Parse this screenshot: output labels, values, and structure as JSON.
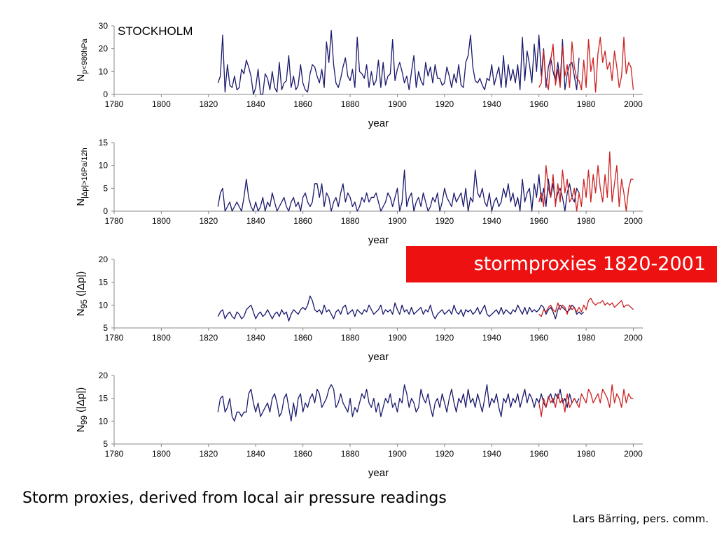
{
  "banner": "stormproxies 1820-2001",
  "caption": "Storm proxies, derived from local air pressure readings",
  "credit": "Lars Bärring, pers. comm.",
  "colors": {
    "series_a": "#1a1a6e",
    "series_b": "#cc2222",
    "banner_bg": "#ee1111"
  },
  "chart_data": [
    {
      "type": "line",
      "station_label": "STOCKHOLM",
      "xlabel": "year",
      "ylabel": {
        "base": "N",
        "sub": "p<980hPa",
        "suffix": ""
      },
      "xlim": [
        1780,
        2004
      ],
      "ylim": [
        0,
        30
      ],
      "xticks": [
        1780,
        1800,
        1820,
        1840,
        1860,
        1880,
        1900,
        1920,
        1940,
        1960,
        1980,
        2000
      ],
      "yticks": [
        0,
        10,
        20,
        30
      ],
      "series": [
        {
          "color": "#1a1a6e",
          "x_start": 1824,
          "values": [
            5,
            8,
            26,
            1,
            13,
            4,
            3,
            8,
            2,
            3,
            11,
            9,
            15,
            12,
            8,
            0,
            3,
            11,
            0,
            0,
            9,
            7,
            2,
            10,
            3,
            1,
            14,
            2,
            5,
            6,
            17,
            3,
            8,
            2,
            4,
            13,
            5,
            2,
            1,
            9,
            13,
            12,
            8,
            5,
            11,
            3,
            23,
            14,
            28,
            13,
            5,
            3,
            7,
            12,
            16,
            8,
            6,
            11,
            3,
            25,
            10,
            9,
            7,
            13,
            3,
            10,
            4,
            6,
            15,
            3,
            14,
            4,
            8,
            9,
            24,
            6,
            11,
            14,
            10,
            5,
            8,
            2,
            10,
            17,
            3,
            10,
            6,
            4,
            14,
            8,
            12,
            5,
            13,
            7,
            7,
            4,
            5,
            12,
            8,
            3,
            9,
            5,
            13,
            4,
            3,
            14,
            17,
            26,
            12,
            6,
            5,
            7,
            4,
            2,
            7,
            6,
            13,
            4,
            8,
            12,
            3,
            17,
            3,
            13,
            6,
            11,
            5,
            13,
            2,
            25,
            6,
            19,
            13,
            5,
            22,
            10,
            26,
            8,
            20,
            3,
            12,
            16,
            10,
            6,
            14,
            5,
            24,
            2,
            9,
            13,
            14,
            8,
            2,
            16
          ]
        },
        {
          "color": "#cc2222",
          "x_start": 1960,
          "values": [
            3,
            5,
            19,
            6,
            2,
            15,
            22,
            4,
            11,
            3,
            21,
            8,
            13,
            3,
            23,
            12,
            7,
            6,
            2,
            15,
            3,
            24,
            10,
            16,
            1,
            18,
            25,
            14,
            19,
            11,
            14,
            6,
            19,
            12,
            3,
            8,
            25,
            9,
            14,
            12,
            2
          ]
        }
      ]
    },
    {
      "type": "line",
      "xlabel": "year",
      "ylabel": {
        "base": "N",
        "sub": "|Δp|>16Pa/12h",
        "suffix": ""
      },
      "xlim": [
        1780,
        2004
      ],
      "ylim": [
        0,
        15
      ],
      "xticks": [
        1780,
        1800,
        1820,
        1840,
        1860,
        1880,
        1900,
        1920,
        1940,
        1960,
        1980,
        2000
      ],
      "yticks": [
        0,
        5,
        10,
        15
      ],
      "series": [
        {
          "color": "#1a1a6e",
          "x_start": 1824,
          "values": [
            1,
            4,
            5,
            0,
            1,
            2,
            0,
            1,
            2,
            1,
            0,
            3,
            7,
            3,
            1,
            0,
            2,
            0,
            1,
            3,
            0,
            2,
            1,
            4,
            2,
            0,
            1,
            2,
            3,
            1,
            0,
            2,
            3,
            1,
            2,
            0,
            3,
            4,
            2,
            1,
            2,
            6,
            6,
            3,
            6,
            1,
            4,
            3,
            0,
            2,
            3,
            1,
            4,
            6,
            2,
            4,
            3,
            1,
            2,
            0,
            1,
            3,
            2,
            4,
            2,
            3,
            3,
            4,
            2,
            0,
            1,
            2,
            4,
            3,
            1,
            3,
            5,
            0,
            2,
            9,
            1,
            3,
            4,
            0,
            2,
            3,
            1,
            4,
            2,
            0,
            1,
            3,
            2,
            4,
            0,
            2,
            5,
            3,
            2,
            1,
            4,
            2,
            3,
            4,
            1,
            5,
            0,
            3,
            2,
            9,
            4,
            3,
            5,
            2,
            1,
            4,
            0,
            2,
            3,
            1,
            2,
            5,
            3,
            6,
            2,
            4,
            1,
            3,
            0,
            7,
            2,
            4,
            5,
            0,
            6,
            3,
            8,
            2,
            5,
            1,
            7,
            3,
            6,
            2,
            4,
            5,
            3,
            0,
            4,
            6,
            3,
            2,
            5,
            4
          ]
        },
        {
          "color": "#cc2222",
          "x_start": 1960,
          "values": [
            2,
            4,
            1,
            10,
            5,
            3,
            8,
            1,
            6,
            2,
            9,
            4,
            7,
            2,
            3,
            5,
            0,
            4,
            1,
            7,
            3,
            9,
            2,
            8,
            4,
            10,
            5,
            2,
            8,
            3,
            13,
            2,
            6,
            10,
            1,
            7,
            4,
            0,
            5,
            7,
            7
          ]
        }
      ]
    },
    {
      "type": "line",
      "xlabel": "year",
      "ylabel": {
        "base": "N",
        "sub": "95",
        "suffix": " (|Δp|)"
      },
      "xlim": [
        1780,
        2004
      ],
      "ylim": [
        5,
        20
      ],
      "xticks": [
        1780,
        1800,
        1820,
        1840,
        1860,
        1880,
        1900,
        1920,
        1940,
        1960,
        1980,
        2000
      ],
      "yticks": [
        5,
        10,
        15,
        20
      ],
      "series": [
        {
          "color": "#1a1a6e",
          "x_start": 1824,
          "values": [
            7.5,
            8.5,
            9,
            7,
            8,
            8.5,
            7.5,
            7,
            8.5,
            8,
            7,
            7.5,
            9,
            9.5,
            10,
            8.5,
            7,
            8,
            8.5,
            7.5,
            8,
            9,
            8,
            7,
            8,
            8.5,
            7.5,
            9,
            8,
            8.5,
            6.5,
            8,
            9,
            8.5,
            8,
            9,
            9.5,
            9,
            10,
            12,
            11,
            9,
            8.5,
            9,
            8,
            10,
            8.5,
            9,
            8,
            7,
            8.5,
            9,
            8,
            9.5,
            10,
            8,
            8.5,
            9,
            7.5,
            9,
            8.5,
            8,
            9,
            8.5,
            10,
            9,
            8,
            8.5,
            9,
            10,
            8,
            9,
            8.5,
            9,
            8,
            10.5,
            9,
            8,
            10,
            8.5,
            9,
            8,
            9.5,
            8,
            8.5,
            9,
            9.5,
            8,
            9,
            8.5,
            10,
            8,
            7,
            8,
            8.5,
            9,
            8,
            8.5,
            9,
            8,
            10,
            8.5,
            8,
            9,
            7.5,
            9,
            8.5,
            9,
            8,
            8.5,
            9.5,
            8,
            9,
            10,
            8,
            7.5,
            8,
            8.5,
            9,
            8,
            9.5,
            8,
            9,
            8.5,
            8,
            9,
            8.5,
            10,
            9,
            8,
            9.5,
            8,
            9.5,
            8.5,
            9,
            8.5,
            9,
            10,
            9.5,
            8,
            9,
            9.5,
            8.5,
            7,
            9,
            10,
            9.5,
            9,
            8.5,
            9,
            10,
            9.5,
            8,
            8.5,
            8,
            8.5
          ]
        },
        {
          "color": "#cc2222",
          "x_start": 1960,
          "values": [
            8,
            7.5,
            9,
            8.5,
            9.5,
            10,
            9,
            8.5,
            10.5,
            9,
            10,
            9.5,
            8,
            10,
            9,
            9.5,
            8.5,
            9.5,
            8.5,
            10,
            9,
            11,
            11.5,
            10.5,
            10,
            10.5,
            10.5,
            11,
            10,
            10.5,
            10,
            10.5,
            9.5,
            10,
            10.5,
            11,
            9.5,
            10,
            10,
            9.5,
            9
          ]
        }
      ]
    },
    {
      "type": "line",
      "xlabel": "year",
      "ylabel": {
        "base": "N",
        "sub": "99",
        "suffix": " (|Δp|)"
      },
      "xlim": [
        1780,
        2004
      ],
      "ylim": [
        5,
        20
      ],
      "xticks": [
        1780,
        1800,
        1820,
        1840,
        1860,
        1880,
        1900,
        1920,
        1940,
        1960,
        1980,
        2000
      ],
      "yticks": [
        5,
        10,
        15,
        20
      ],
      "series": [
        {
          "color": "#1a1a6e",
          "x_start": 1824,
          "values": [
            12,
            15,
            15.5,
            12,
            13,
            15,
            11,
            10,
            12,
            12,
            11,
            12,
            12,
            16,
            17,
            14,
            12,
            14,
            11,
            12,
            13,
            14,
            12,
            15,
            16,
            14,
            11,
            12,
            15,
            16,
            13,
            10,
            14,
            11,
            15,
            16,
            12,
            14,
            13,
            15,
            16,
            14,
            17,
            16,
            13,
            14,
            15,
            17,
            18,
            17,
            13,
            14,
            16,
            14,
            13,
            12,
            15,
            11,
            13,
            12,
            14,
            16,
            15,
            17,
            14,
            13,
            15,
            12,
            14,
            11,
            13,
            15,
            14,
            16,
            13,
            14,
            12,
            15,
            14,
            18,
            16,
            13,
            15,
            14,
            12,
            13,
            17,
            15,
            14,
            16,
            13,
            11,
            14,
            15,
            13,
            16,
            14,
            12,
            15,
            17,
            14,
            12,
            15,
            14,
            16,
            13,
            17,
            14,
            15,
            13,
            16,
            14,
            12,
            15,
            18,
            13,
            15,
            14,
            16,
            13,
            11,
            15,
            14,
            16,
            13,
            15,
            14,
            16,
            13,
            15,
            17,
            14,
            16,
            15,
            13,
            15,
            14,
            16,
            14,
            13,
            15,
            16,
            14,
            16,
            15,
            17,
            14,
            15,
            13,
            16,
            14,
            15,
            14,
            15
          ]
        },
        {
          "color": "#cc2222",
          "x_start": 1960,
          "values": [
            14,
            11,
            15,
            13,
            15.5,
            14,
            15,
            13,
            16,
            14,
            15,
            12,
            16,
            13,
            14,
            15,
            14,
            13,
            16,
            15,
            14,
            17,
            16,
            14,
            15,
            16,
            14,
            17,
            16,
            15,
            13,
            18,
            14,
            16,
            15,
            13,
            17,
            14,
            16,
            15,
            15
          ]
        }
      ]
    }
  ]
}
